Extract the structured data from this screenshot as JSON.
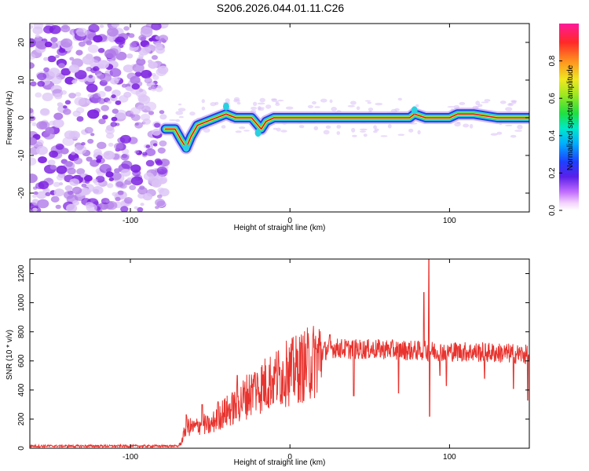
{
  "title": "S206.2026.044.01.11.C26",
  "colors": {
    "axis": "#000000",
    "line": "#e8332e",
    "scatter": "#7b1fe0",
    "signal_core": "#e0162b",
    "signal_mid": "#f0e830",
    "signal_outer": "#2ad0e0",
    "signal_edge": "#2040e8"
  },
  "chart_data": [
    {
      "type": "heatmap",
      "name": "spectrogram",
      "xlabel": "Height of straight line (km)",
      "ylabel": "Frequency (Hz)",
      "xlim": [
        -163,
        150
      ],
      "ylim": [
        -25,
        25
      ],
      "xticks": [
        -100,
        0,
        100
      ],
      "yticks": [
        -20,
        -10,
        0,
        10,
        20
      ],
      "xtick_labels": [
        "-100",
        "0",
        "100"
      ],
      "ytick_labels": [
        "-20",
        "-10",
        "0",
        "10",
        "20"
      ],
      "noise_region_x": [
        -163,
        -78
      ],
      "signal_track": [
        [
          -78,
          -3
        ],
        [
          -72,
          -3
        ],
        [
          -68,
          -6
        ],
        [
          -65,
          -8
        ],
        [
          -62,
          -5
        ],
        [
          -58,
          -2
        ],
        [
          -52,
          -1
        ],
        [
          -46,
          0
        ],
        [
          -40,
          1
        ],
        [
          -34,
          0
        ],
        [
          -28,
          0
        ],
        [
          -24,
          0
        ],
        [
          -20,
          -2
        ],
        [
          -18,
          -3
        ],
        [
          -15,
          -1
        ],
        [
          -10,
          0
        ],
        [
          -5,
          0
        ],
        [
          0,
          0
        ],
        [
          10,
          0
        ],
        [
          20,
          0
        ],
        [
          40,
          0
        ],
        [
          60,
          0
        ],
        [
          75,
          0
        ],
        [
          78,
          1
        ],
        [
          85,
          0
        ],
        [
          100,
          0
        ],
        [
          105,
          1
        ],
        [
          115,
          1
        ],
        [
          130,
          0
        ],
        [
          150,
          0
        ]
      ],
      "colorbar": {
        "label": "Normalized spectral amplitude",
        "range": [
          0.0,
          1.0
        ],
        "ticks": [
          0.0,
          0.2,
          0.4,
          0.6,
          0.8
        ],
        "tick_labels": [
          "0.0",
          "0.2",
          "0.4",
          "0.6",
          "0.8"
        ]
      }
    },
    {
      "type": "line",
      "name": "snr",
      "xlabel": "Height of straight line (km)",
      "ylabel": "SNR (10 * v/v)",
      "xlim": [
        -163,
        150
      ],
      "ylim": [
        0,
        1300
      ],
      "xticks": [
        -100,
        0,
        100
      ],
      "yticks": [
        0,
        200,
        400,
        600,
        800,
        1000,
        1200
      ],
      "xtick_labels": [
        "-100",
        "0",
        "100"
      ],
      "ytick_labels": [
        "0",
        "200",
        "400",
        "600",
        "800",
        "1000",
        "1200"
      ],
      "series": [
        {
          "name": "SNR",
          "envelope": [
            [
              -163,
              15
            ],
            [
              -70,
              15
            ],
            [
              -68,
              40
            ],
            [
              -65,
              150
            ],
            [
              -60,
              140
            ],
            [
              -55,
              170
            ],
            [
              -50,
              150
            ],
            [
              -45,
              220
            ],
            [
              -40,
              250
            ],
            [
              -35,
              280
            ],
            [
              -30,
              330
            ],
            [
              -25,
              380
            ],
            [
              -20,
              410
            ],
            [
              -10,
              480
            ],
            [
              0,
              520
            ],
            [
              10,
              570
            ],
            [
              15,
              600
            ],
            [
              20,
              660
            ],
            [
              25,
              690
            ],
            [
              40,
              680
            ],
            [
              60,
              680
            ],
            [
              80,
              670
            ],
            [
              100,
              665
            ],
            [
              120,
              660
            ],
            [
              140,
              650
            ],
            [
              150,
              640
            ]
          ],
          "spikes": [
            [
              -65,
              230
            ],
            [
              -55,
              300
            ],
            [
              -45,
              320
            ],
            [
              -33,
              500
            ],
            [
              -22,
              520
            ],
            [
              -10,
              560
            ],
            [
              -2,
              620
            ],
            [
              25,
              780
            ],
            [
              40,
              360
            ],
            [
              68,
              380
            ],
            [
              84,
              1070
            ],
            [
              87,
              1300
            ],
            [
              87.5,
              220
            ],
            [
              94,
              500
            ],
            [
              98,
              430
            ],
            [
              122,
              480
            ],
            [
              140,
              410
            ],
            [
              149,
              330
            ]
          ]
        }
      ]
    }
  ]
}
